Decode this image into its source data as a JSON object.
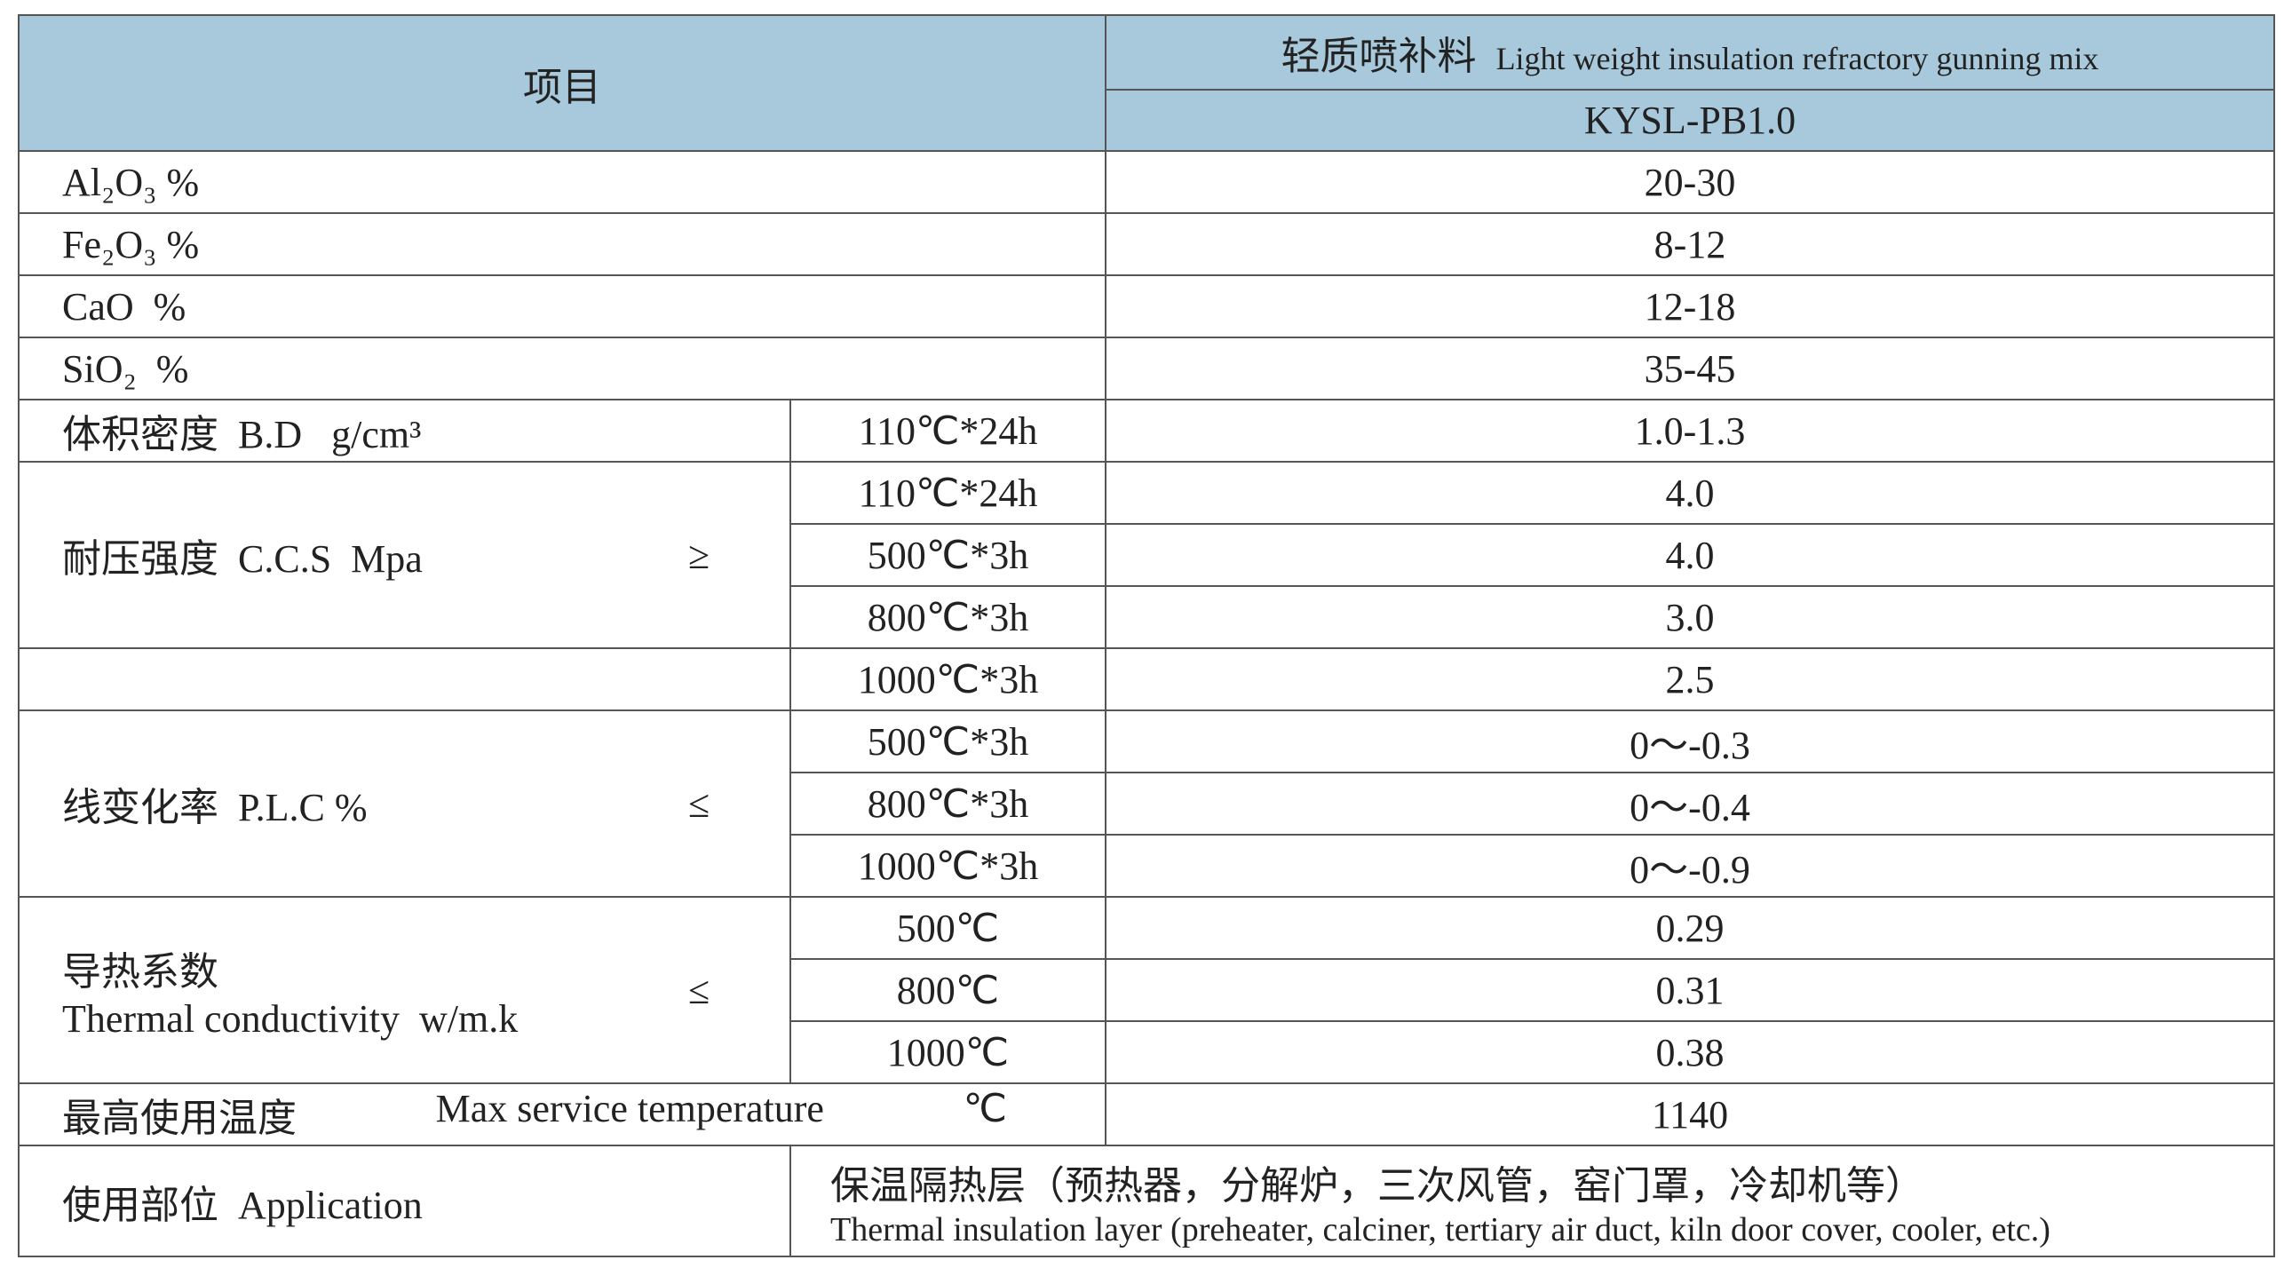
{
  "header": {
    "item": "项目",
    "product_name_cn": "轻质喷补料",
    "product_name_en": "Light weight insulation refractory gunning mix",
    "grade": "KYSL-PB1.0"
  },
  "simple_rows": [
    {
      "label": "Al₂O₃ %",
      "value": "20-30"
    },
    {
      "label": "Fe₂O₃ %",
      "value": "8-12"
    },
    {
      "label": "CaO  %",
      "value": "12-18"
    },
    {
      "label": "SiO₂  %",
      "value": "35-45"
    }
  ],
  "bulk_density": {
    "label": "体积密度  B.D   g/cm³",
    "condition": "110℃*24h",
    "value": "1.0-1.3"
  },
  "ccs": {
    "label": "耐压强度  C.C.S  Mpa",
    "sign": "≥",
    "tests": [
      {
        "condition": "110℃*24h",
        "value": "4.0"
      },
      {
        "condition": "500℃*3h",
        "value": "4.0"
      },
      {
        "condition": "800℃*3h",
        "value": "3.0"
      }
    ]
  },
  "ccs_extra": {
    "condition": "1000℃*3h",
    "value": "2.5"
  },
  "plc": {
    "label": "线变化率  P.L.C %",
    "sign": "≤",
    "tests": [
      {
        "condition": "500℃*3h",
        "value": "0～-0.3"
      },
      {
        "condition": "800℃*3h",
        "value": "0～-0.4"
      },
      {
        "condition": "1000℃*3h",
        "value": "0～-0.9"
      }
    ]
  },
  "thermal": {
    "label_cn": "导热系数",
    "label_en": "Thermal conductivity  w/m.k",
    "sign": "≤",
    "tests": [
      {
        "condition": "500℃",
        "value": "0.29"
      },
      {
        "condition": "800℃",
        "value": "0.31"
      },
      {
        "condition": "1000℃",
        "value": "0.38"
      }
    ]
  },
  "max_temp": {
    "label_cn": "最高使用温度",
    "label_en": "Max service temperature",
    "unit": "℃",
    "value": "1140"
  },
  "application": {
    "label": "使用部位  Application",
    "text_cn": "保温隔热层（预热器，分解炉，三次风管，窑门罩，冷却机等）",
    "text_en": "Thermal insulation layer (preheater, calciner, tertiary air duct, kiln door cover, cooler, etc.)"
  }
}
